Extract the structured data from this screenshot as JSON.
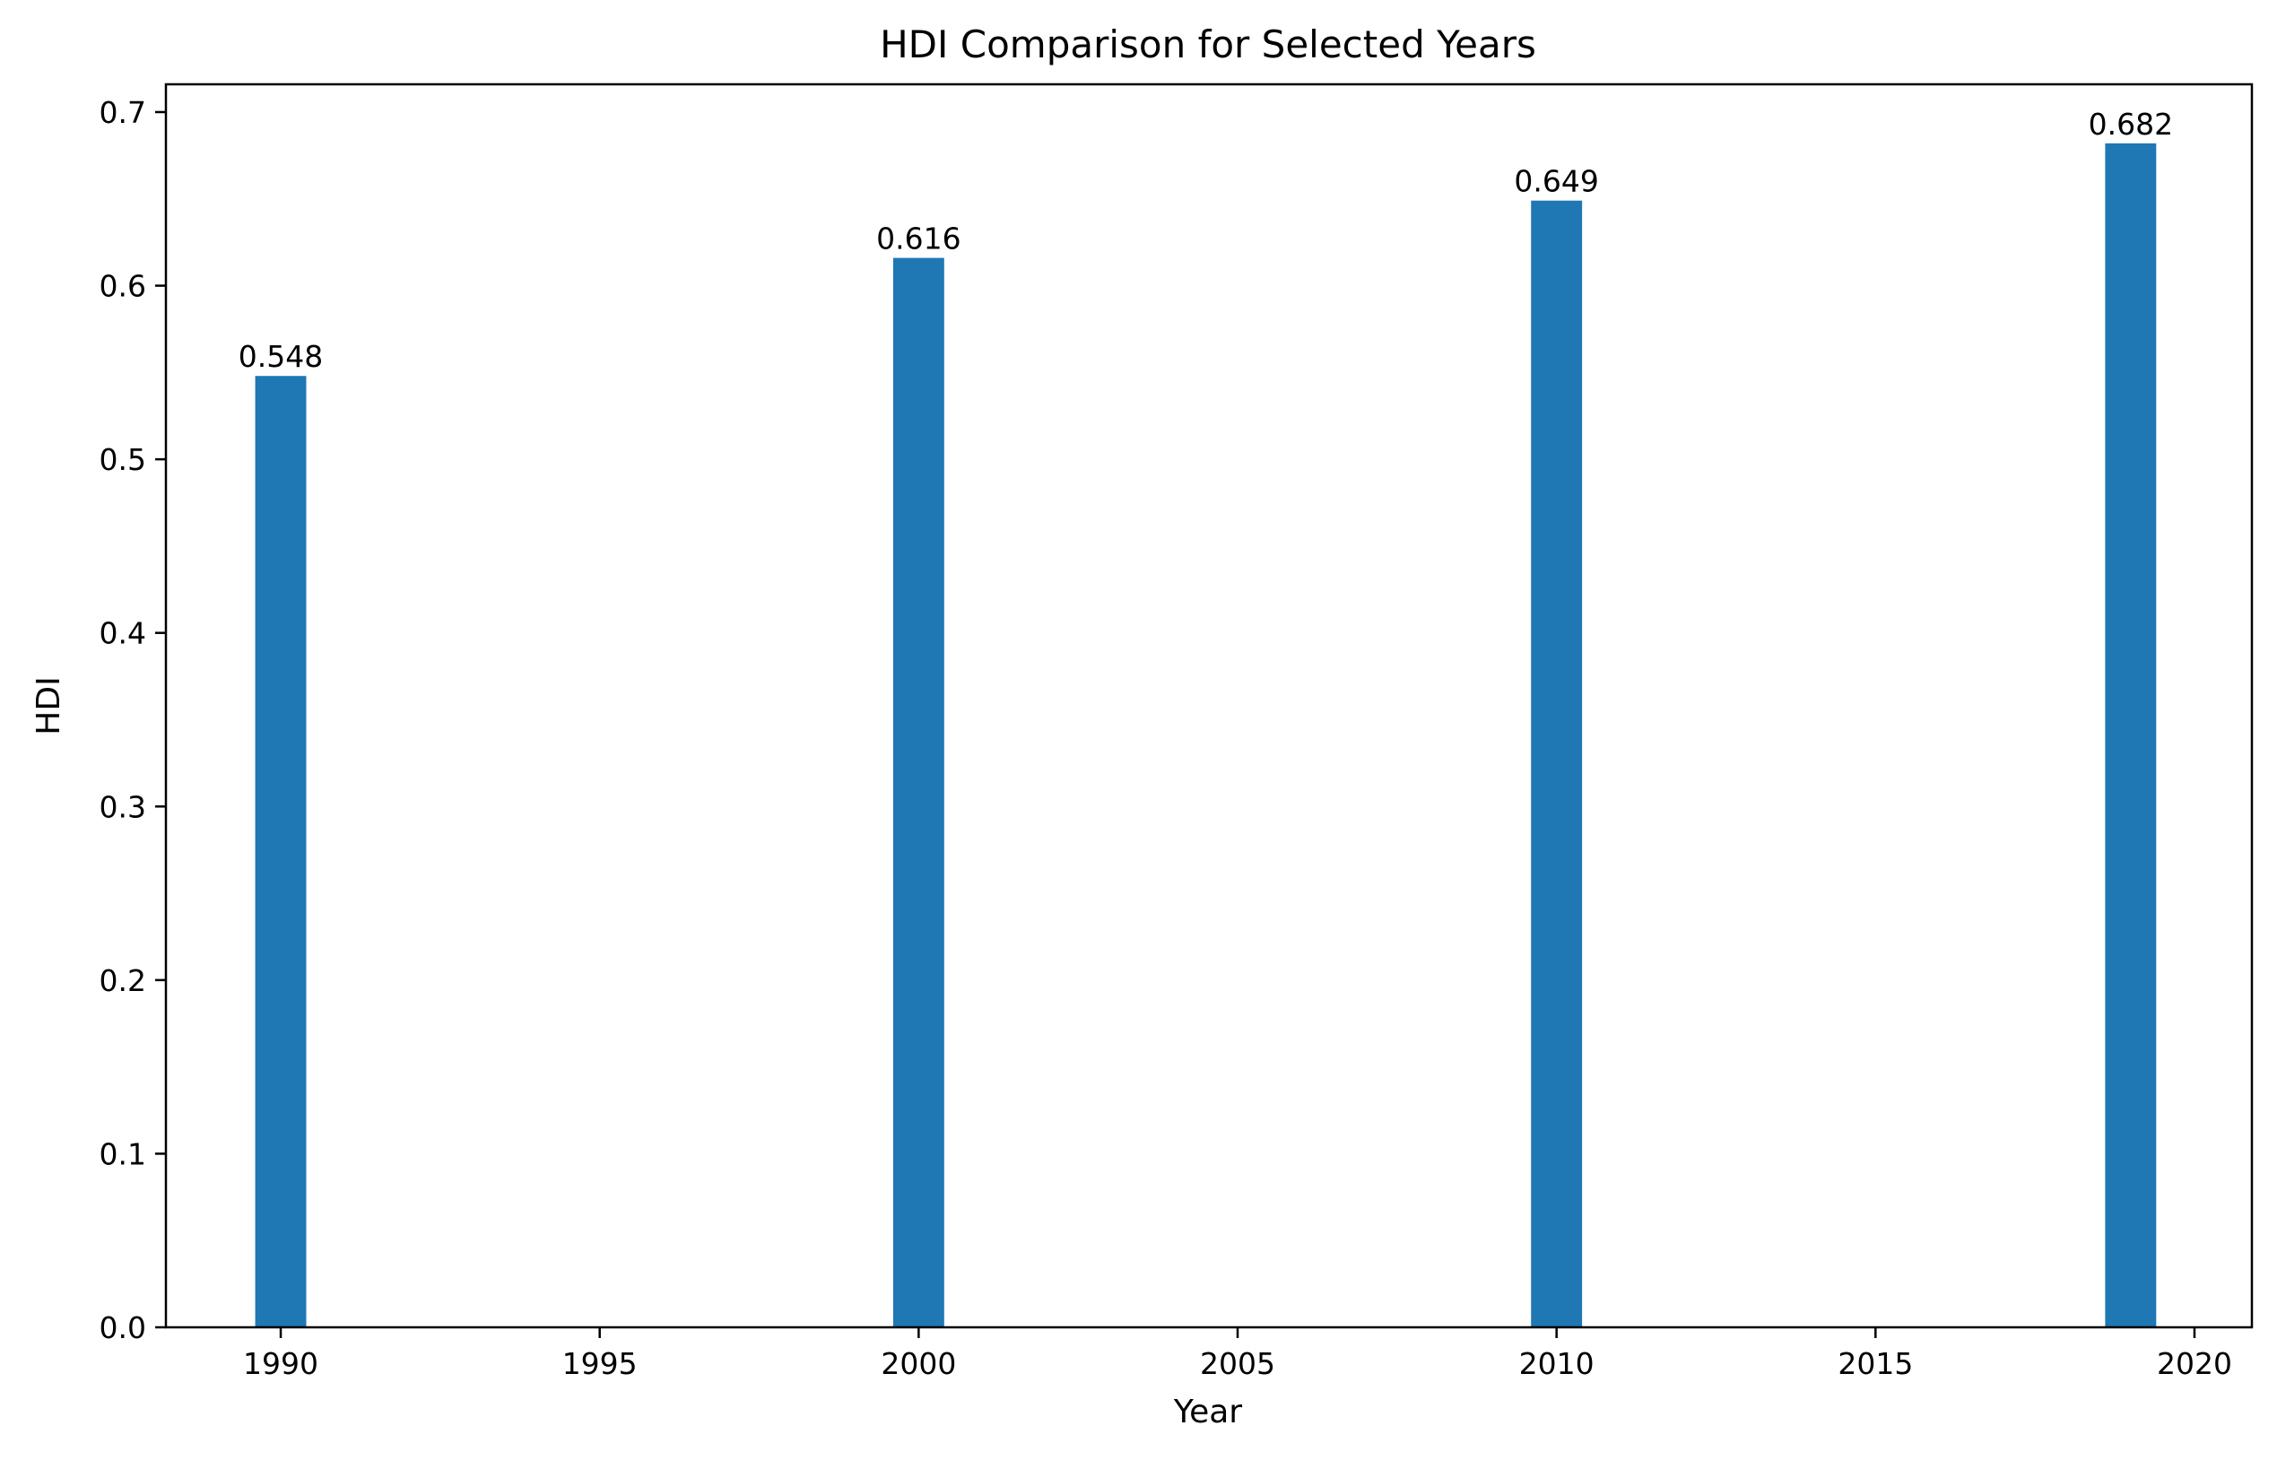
{
  "chart_data": {
    "type": "bar",
    "title": "HDI Comparison for Selected Years",
    "xlabel": "Year",
    "ylabel": "HDI",
    "x": [
      1990,
      2000,
      2010,
      2019
    ],
    "values": [
      0.548,
      0.616,
      0.649,
      0.682
    ],
    "data_labels": [
      "0.548",
      "0.616",
      "0.649",
      "0.682"
    ],
    "bar_color": "#1f77b4",
    "xlim": [
      1988.2,
      2020.9
    ],
    "ylim": [
      0,
      0.716
    ],
    "x_ticks": [
      1990,
      1995,
      2000,
      2005,
      2010,
      2015,
      2020
    ],
    "x_tick_labels": [
      "1990",
      "1995",
      "2000",
      "2005",
      "2010",
      "2015",
      "2020"
    ],
    "y_ticks": [
      0.0,
      0.1,
      0.2,
      0.3,
      0.4,
      0.5,
      0.6,
      0.7
    ],
    "y_tick_labels": [
      "0.0",
      "0.1",
      "0.2",
      "0.3",
      "0.4",
      "0.5",
      "0.6",
      "0.7"
    ],
    "bar_width_years": 0.8,
    "grid": false,
    "legend": "none"
  }
}
